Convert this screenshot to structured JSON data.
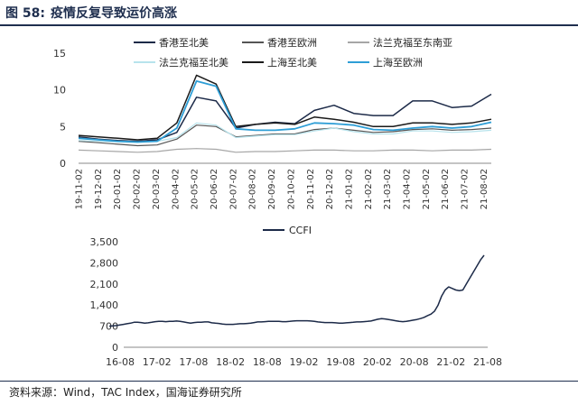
{
  "header": {
    "figure_label": "图 58:",
    "title": "疫情反复导致运价高涨"
  },
  "source": "资料来源：Wind，TAC Index，国海证券研究所",
  "chart_data": [
    {
      "type": "line",
      "title": "",
      "ylim": [
        0,
        15
      ],
      "yticks": [
        0,
        5,
        10,
        15
      ],
      "x_labels": [
        "19-11-02",
        "19-12-02",
        "20-01-02",
        "20-02-02",
        "20-03-02",
        "20-04-02",
        "20-05-02",
        "20-06-02",
        "20-07-02",
        "20-08-02",
        "20-09-02",
        "20-10-02",
        "20-11-02",
        "20-12-02",
        "21-01-02",
        "21-02-02",
        "21-03-02",
        "21-04-02",
        "21-05-02",
        "21-06-02",
        "21-07-02",
        "21-08-02"
      ],
      "legend_position": "top",
      "series": [
        {
          "name": "香港至北美",
          "color": "#1c2a48",
          "width": 1.5,
          "values": [
            3.6,
            3.3,
            3.1,
            3.0,
            3.2,
            4.2,
            9.0,
            8.5,
            4.8,
            5.3,
            5.6,
            5.4,
            7.2,
            7.9,
            6.8,
            6.5,
            6.5,
            8.5,
            8.5,
            7.6,
            7.8,
            9.4
          ]
        },
        {
          "name": "香港至欧洲",
          "color": "#555555",
          "width": 1.2,
          "values": [
            3.0,
            2.8,
            2.6,
            2.4,
            2.5,
            3.3,
            5.2,
            5.0,
            3.6,
            3.8,
            4.0,
            4.0,
            4.6,
            4.8,
            4.5,
            4.2,
            4.3,
            4.6,
            4.7,
            4.5,
            4.6,
            4.8
          ]
        },
        {
          "name": "法兰克福至东南亚",
          "color": "#a6a6a6",
          "width": 1.2,
          "values": [
            1.8,
            1.7,
            1.6,
            1.5,
            1.6,
            1.9,
            2.0,
            1.9,
            1.5,
            1.6,
            1.6,
            1.7,
            1.8,
            1.8,
            1.7,
            1.7,
            1.8,
            1.8,
            1.7,
            1.8,
            1.8,
            1.9
          ]
        },
        {
          "name": "法兰克福至北美",
          "color": "#b7e3ec",
          "width": 1.2,
          "values": [
            3.1,
            3.0,
            2.9,
            2.8,
            3.0,
            3.5,
            5.5,
            5.2,
            3.5,
            3.7,
            3.9,
            3.9,
            4.4,
            4.8,
            4.3,
            4.0,
            4.0,
            4.4,
            4.4,
            4.2,
            4.3,
            4.5
          ]
        },
        {
          "name": "上海至北美",
          "color": "#1a1a1a",
          "width": 1.5,
          "values": [
            3.8,
            3.6,
            3.4,
            3.2,
            3.4,
            5.5,
            12.0,
            10.8,
            5.0,
            5.3,
            5.5,
            5.3,
            6.3,
            6.0,
            5.6,
            5.0,
            5.0,
            5.5,
            5.5,
            5.3,
            5.5,
            6.0
          ]
        },
        {
          "name": "上海至欧洲",
          "color": "#2e9ed6",
          "width": 1.8,
          "values": [
            3.4,
            3.2,
            3.0,
            2.9,
            3.0,
            4.8,
            11.2,
            10.5,
            4.7,
            4.5,
            4.5,
            4.7,
            5.5,
            5.4,
            5.2,
            4.6,
            4.5,
            4.8,
            5.0,
            4.8,
            5.0,
            5.6
          ]
        }
      ]
    },
    {
      "type": "line",
      "title": "",
      "ylim": [
        0,
        3500
      ],
      "yticks": [
        0,
        700,
        1400,
        2100,
        2800,
        3500
      ],
      "ytick_labels": [
        "0",
        "700",
        "1,400",
        "2,100",
        "2,800",
        "3,500"
      ],
      "x_labels": [
        "16-08",
        "17-02",
        "17-08",
        "18-02",
        "18-08",
        "19-02",
        "19-08",
        "20-02",
        "20-08",
        "21-02",
        "21-08"
      ],
      "legend_position": "top",
      "series": [
        {
          "name": "CCFI",
          "color": "#1c2a48",
          "width": 1.5,
          "values": [
            700,
            710,
            720,
            740,
            760,
            780,
            800,
            830,
            830,
            820,
            800,
            810,
            830,
            850,
            860,
            860,
            850,
            860,
            860,
            870,
            860,
            840,
            820,
            800,
            820,
            830,
            830,
            840,
            840,
            810,
            800,
            790,
            770,
            760,
            760,
            760,
            770,
            780,
            780,
            790,
            800,
            820,
            840,
            840,
            850,
            860,
            860,
            860,
            860,
            850,
            850,
            860,
            870,
            880,
            880,
            880,
            880,
            870,
            860,
            840,
            830,
            820,
            820,
            820,
            810,
            800,
            800,
            810,
            820,
            830,
            840,
            840,
            850,
            860,
            870,
            900,
            930,
            950,
            940,
            920,
            900,
            880,
            860,
            850,
            860,
            880,
            900,
            920,
            950,
            990,
            1050,
            1100,
            1200,
            1400,
            1700,
            1900,
            2000,
            1950,
            1900,
            1880,
            1900,
            2100,
            2300,
            2500,
            2700,
            2900,
            3050
          ]
        }
      ]
    }
  ]
}
